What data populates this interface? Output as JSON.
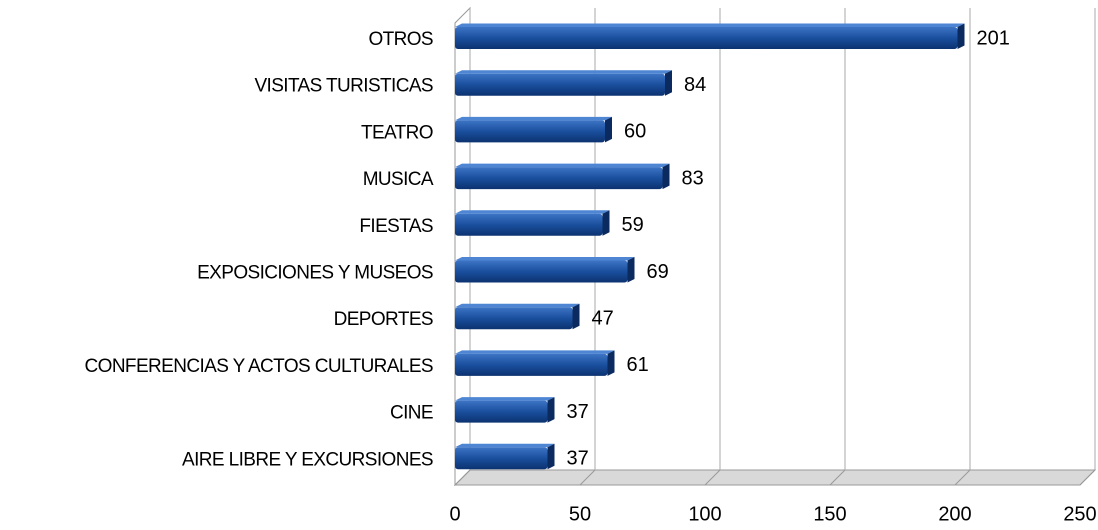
{
  "chart_data": {
    "type": "bar",
    "orientation": "horizontal",
    "categories": [
      "OTROS",
      "VISITAS TURISTICAS",
      "TEATRO",
      "MUSICA",
      "FIESTAS",
      "EXPOSICIONES Y MUSEOS",
      "DEPORTES",
      "CONFERENCIAS Y ACTOS CULTURALES",
      "CINE",
      "AIRE LIBRE Y EXCURSIONES"
    ],
    "values": [
      201,
      84,
      60,
      83,
      59,
      69,
      47,
      61,
      37,
      37
    ],
    "color": "#1a4f9e",
    "xlim": [
      0,
      250
    ],
    "xticks": [
      0,
      50,
      100,
      150,
      200,
      250
    ],
    "grid": true
  }
}
